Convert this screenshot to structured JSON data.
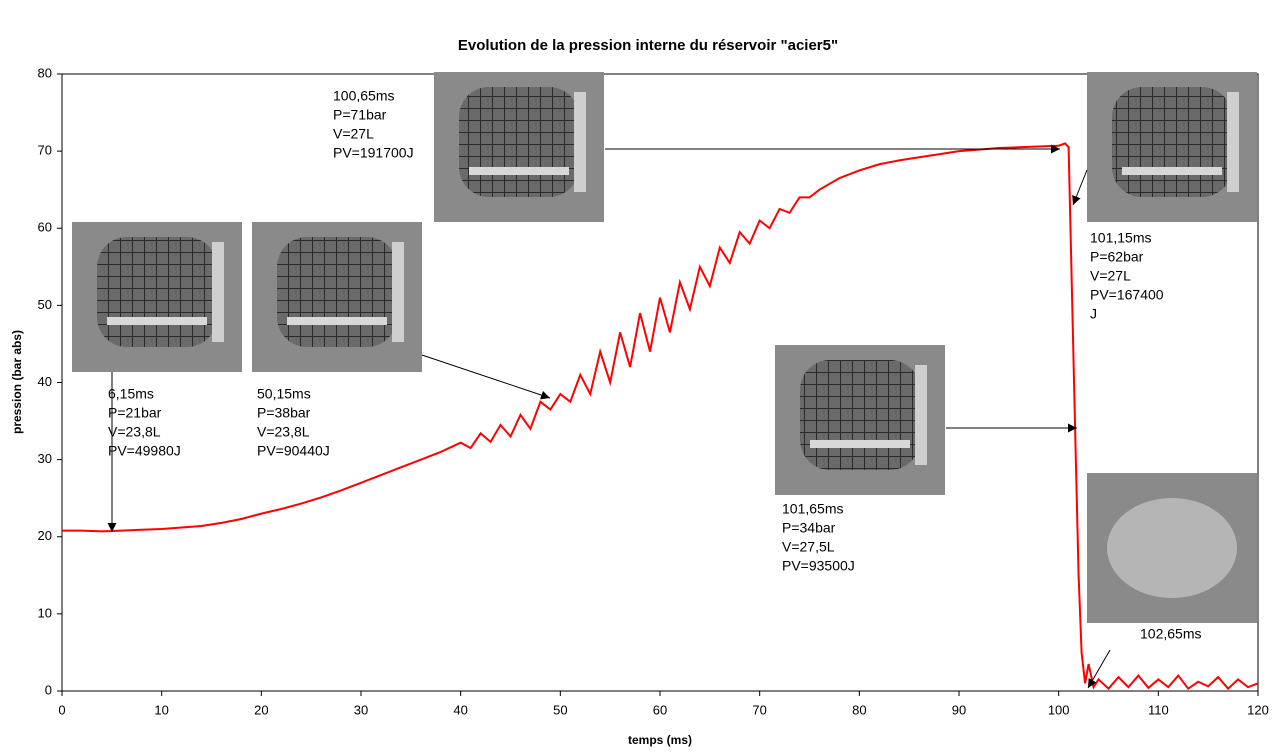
{
  "chart_data": {
    "type": "line",
    "title": "Evolution de la pression interne du  réservoir \"acier5\"",
    "x_label": "temps (ms)",
    "y_label": "pression (bar abs)",
    "xlim": [
      0,
      120
    ],
    "xticks": [
      0,
      10,
      20,
      30,
      40,
      50,
      60,
      70,
      80,
      90,
      100,
      110,
      120
    ],
    "ylim": [
      0,
      80
    ],
    "yticks": [
      0,
      10,
      20,
      30,
      40,
      50,
      60,
      70,
      80
    ],
    "grid": false,
    "x": [
      0,
      2,
      4,
      6,
      8,
      10,
      12,
      14,
      16,
      18,
      20,
      22,
      24,
      26,
      28,
      30,
      32,
      34,
      36,
      38,
      40,
      41,
      42,
      43,
      44,
      45,
      46,
      47,
      48,
      49,
      50,
      51,
      52,
      53,
      54,
      55,
      56,
      57,
      58,
      59,
      60,
      61,
      62,
      63,
      64,
      65,
      66,
      67,
      68,
      69,
      70,
      71,
      72,
      73,
      74,
      75,
      76,
      78,
      80,
      82,
      84,
      86,
      88,
      90,
      92,
      94,
      96,
      98,
      100,
      100.65,
      101,
      101.15,
      101.4,
      101.65,
      102,
      102.3,
      102.65,
      103,
      103.5,
      104,
      105,
      106,
      107,
      108,
      109,
      110,
      111,
      112,
      113,
      114,
      115,
      116,
      117,
      118,
      119,
      120
    ],
    "series": [
      {
        "name": "pression",
        "color": "#ff0000",
        "values": [
          20.8,
          20.8,
          20.7,
          20.8,
          20.9,
          21,
          21.2,
          21.4,
          21.8,
          22.3,
          23,
          23.6,
          24.3,
          25.1,
          26,
          27,
          28,
          29,
          30,
          31,
          32.2,
          31.5,
          33.4,
          32.3,
          34.5,
          33,
          35.8,
          34,
          37.5,
          36.5,
          38.5,
          37.5,
          41,
          38.5,
          44,
          40,
          46.5,
          42,
          49,
          44,
          51,
          46.5,
          53,
          49.5,
          55,
          52.5,
          57.5,
          55.5,
          59.5,
          58,
          61,
          60,
          62.5,
          62,
          64,
          64,
          65,
          66.5,
          67.5,
          68.3,
          68.8,
          69.2,
          69.6,
          70,
          70.2,
          70.4,
          70.5,
          70.6,
          70.7,
          71,
          70.5,
          62,
          48,
          34,
          15,
          5,
          1,
          3.5,
          0.5,
          1.5,
          0.3,
          1.8,
          0.5,
          2,
          0.4,
          1.5,
          0.5,
          2,
          0.3,
          1.2,
          0.6,
          1.8,
          0.3,
          1.5,
          0.5,
          1
        ]
      }
    ],
    "annotations": [
      {
        "lines": [
          "6,15ms",
          "P=21bar",
          "V=23,8L",
          "PV=49980J"
        ]
      },
      {
        "lines": [
          "50,15ms",
          "P=38bar",
          "V=23,8L",
          "PV=90440J"
        ]
      },
      {
        "lines": [
          "100,65ms",
          "P=71bar",
          "V=27L",
          "PV=191700J"
        ]
      },
      {
        "lines": [
          "101,15ms",
          "P=62bar",
          "V=27L",
          "PV=167400",
          "J"
        ]
      },
      {
        "lines": [
          "101,65ms",
          "P=34bar",
          "V=27,5L",
          "PV=93500J"
        ]
      },
      {
        "lines": [
          "102,65ms"
        ]
      }
    ]
  }
}
